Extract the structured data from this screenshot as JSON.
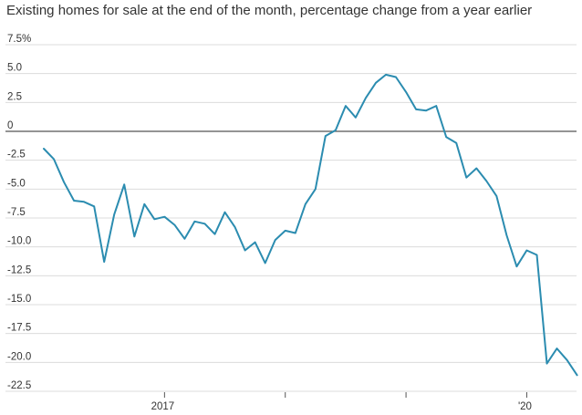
{
  "chart_data": {
    "type": "line",
    "title": "Existing homes for sale at the end of the month, percentage change from a year earlier",
    "xlabel": "",
    "ylabel": "",
    "ylim": [
      -22.5,
      7.5
    ],
    "yticks": [
      {
        "value": 7.5,
        "label": "7.5%"
      },
      {
        "value": 5.0,
        "label": "5.0"
      },
      {
        "value": 2.5,
        "label": "2.5"
      },
      {
        "value": 0,
        "label": "0"
      },
      {
        "value": -2.5,
        "label": "-2.5"
      },
      {
        "value": -5.0,
        "label": "-5.0"
      },
      {
        "value": -7.5,
        "label": "-7.5"
      },
      {
        "value": -10.0,
        "label": "-10.0"
      },
      {
        "value": -12.5,
        "label": "-12.5"
      },
      {
        "value": -15.0,
        "label": "-15.0"
      },
      {
        "value": -17.5,
        "label": "-17.5"
      },
      {
        "value": -20.0,
        "label": "-20.0"
      },
      {
        "value": -22.5,
        "label": "-22.5"
      }
    ],
    "xticks": [
      {
        "date": "2017-01",
        "label": "2017"
      },
      {
        "date": "2018-01",
        "label": ""
      },
      {
        "date": "2019-01",
        "label": ""
      },
      {
        "date": "2020-01",
        "label": "'20"
      }
    ],
    "grid": true,
    "color": "#2b8cb0",
    "series": [
      {
        "x": [
          "2016-01",
          "2016-02",
          "2016-03",
          "2016-04",
          "2016-05",
          "2016-06",
          "2016-07",
          "2016-08",
          "2016-09",
          "2016-10",
          "2016-11",
          "2016-12",
          "2017-01",
          "2017-02",
          "2017-03",
          "2017-04",
          "2017-05",
          "2017-06",
          "2017-07",
          "2017-08",
          "2017-09",
          "2017-10",
          "2017-11",
          "2017-12",
          "2018-01",
          "2018-02",
          "2018-03",
          "2018-04",
          "2018-05",
          "2018-06",
          "2018-07",
          "2018-08",
          "2018-09",
          "2018-10",
          "2018-11",
          "2018-12",
          "2019-01",
          "2019-02",
          "2019-03",
          "2019-04",
          "2019-05",
          "2019-06",
          "2019-07",
          "2019-08",
          "2019-09",
          "2019-10",
          "2019-11",
          "2019-12",
          "2020-01",
          "2020-02",
          "2020-03",
          "2020-04",
          "2020-05",
          "2020-06"
        ],
        "values": [
          -1.5,
          -2.4,
          -4.4,
          -6.0,
          -6.1,
          -6.5,
          -11.3,
          -7.2,
          -4.6,
          -9.1,
          -6.3,
          -7.6,
          -7.4,
          -8.1,
          -9.3,
          -7.8,
          -8.0,
          -8.9,
          -7.0,
          -8.3,
          -10.3,
          -9.6,
          -11.4,
          -9.4,
          -8.6,
          -8.8,
          -6.3,
          -5.0,
          -0.4,
          0.1,
          2.2,
          1.2,
          2.9,
          4.2,
          4.9,
          4.7,
          3.4,
          1.9,
          1.8,
          2.2,
          -0.5,
          -1.0,
          -4.0,
          -3.2,
          -4.3,
          -5.6,
          -9.0,
          -11.7,
          -10.3,
          -10.7,
          -20.1,
          -18.8,
          -19.8,
          -21.1
        ]
      }
    ]
  }
}
